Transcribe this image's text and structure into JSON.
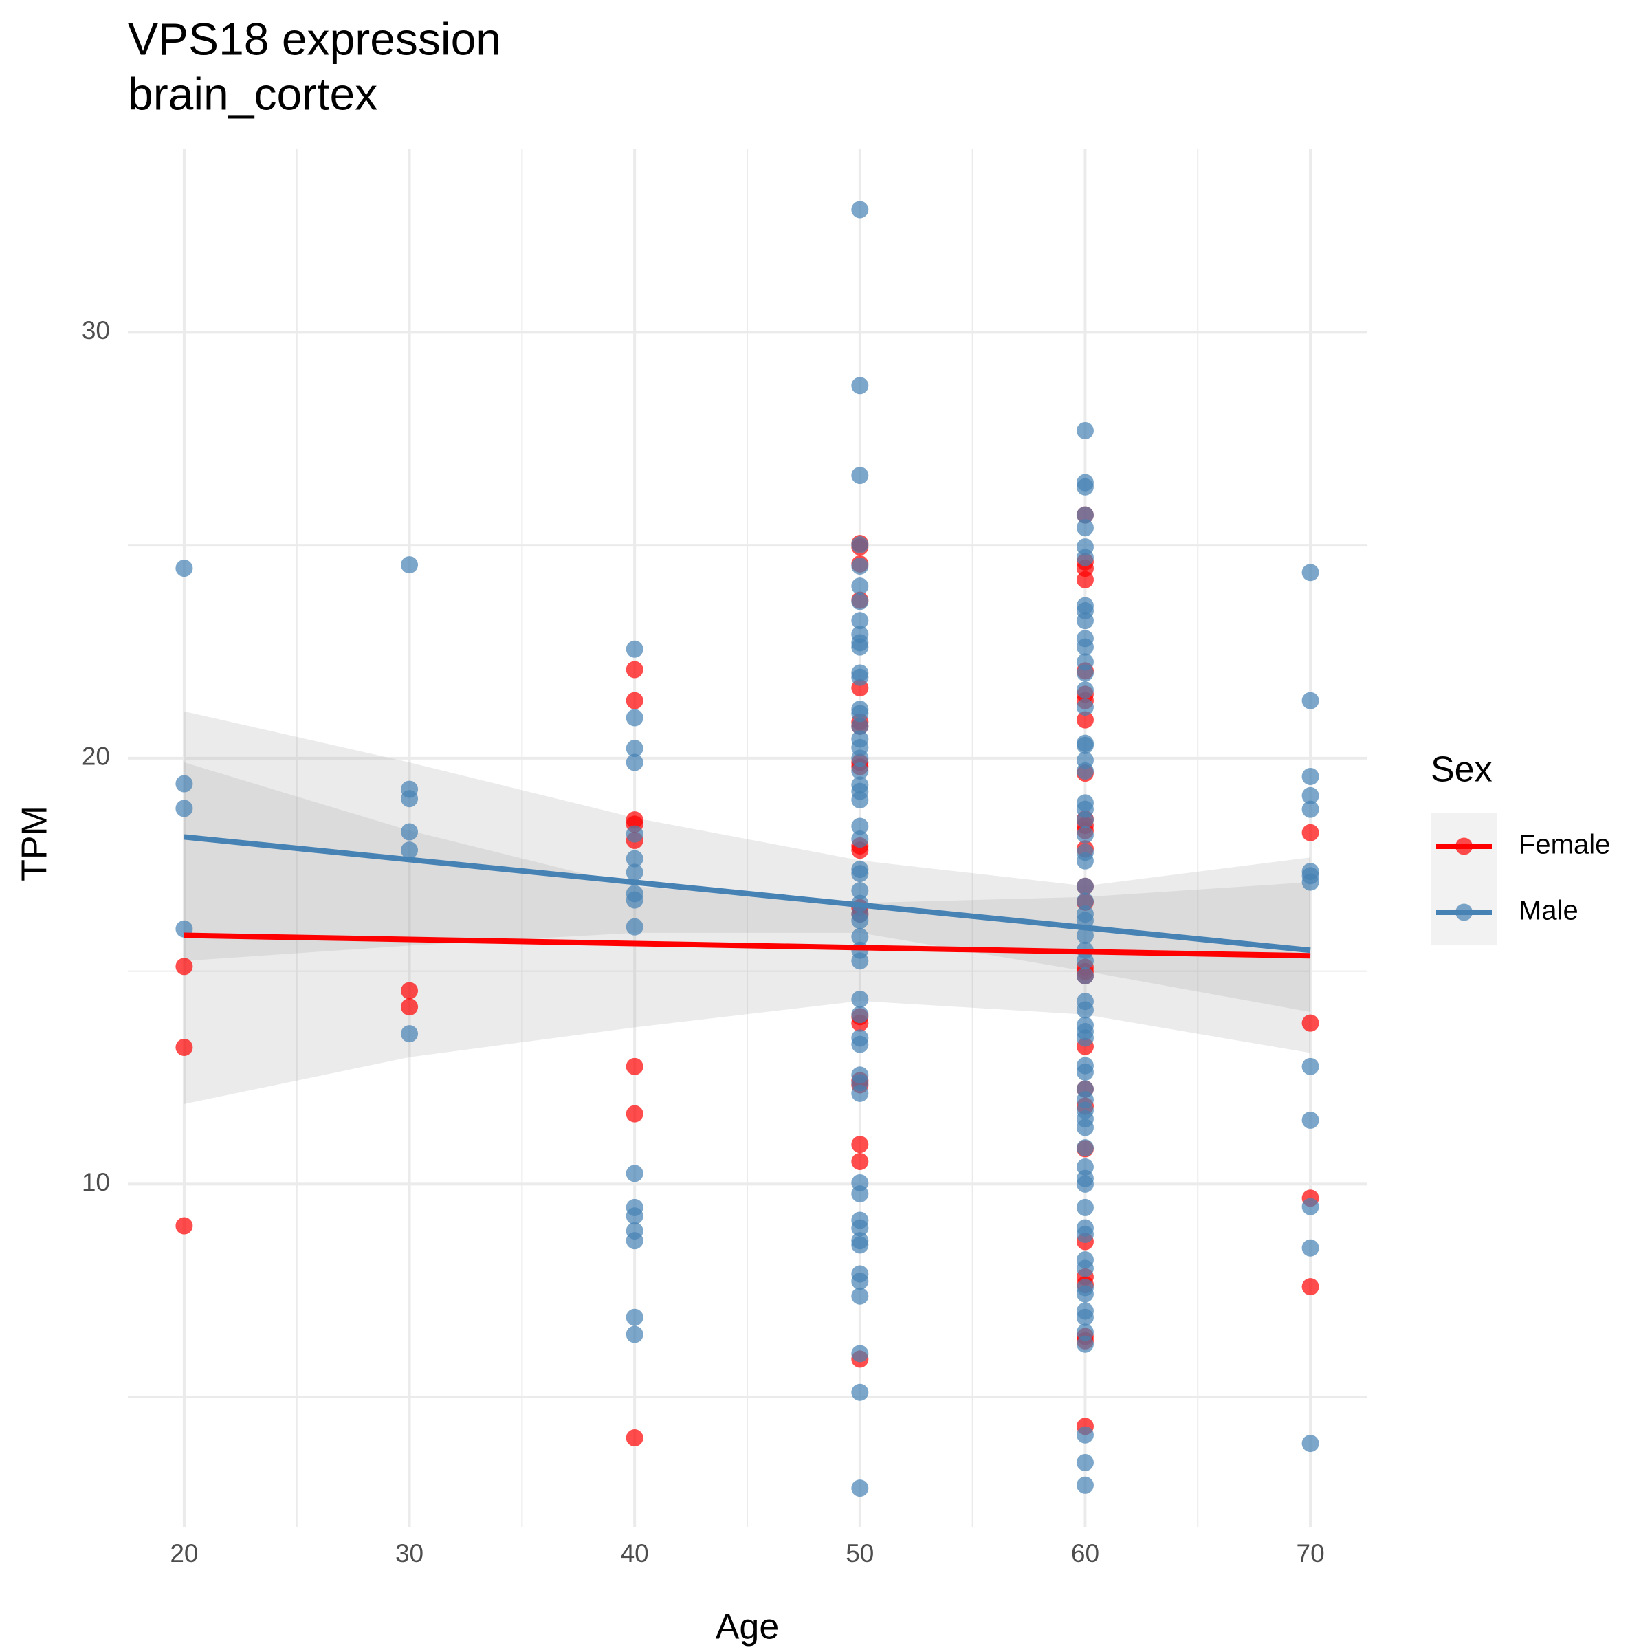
{
  "chart_data": {
    "type": "scatter",
    "title": "VPS18 expression",
    "subtitle": "brain_cortex",
    "x_label": "Age",
    "y_label": "TPM",
    "legend_title": "Sex",
    "legend_position": "right",
    "grid": true,
    "xlim": [
      17.5,
      72.5
    ],
    "ylim": [
      1.95,
      34.3
    ],
    "xticks": [
      20,
      30,
      40,
      50,
      60,
      70
    ],
    "yticks": [
      10,
      20,
      30
    ],
    "x_minor_grid": [
      25,
      35,
      45,
      55,
      65
    ],
    "y_minor_grid": [
      5,
      15,
      25
    ],
    "series": [
      {
        "name": "Female",
        "color": "#ff0000",
        "x": [
          20,
          20,
          20,
          30,
          30,
          40,
          40,
          40,
          40,
          40,
          40,
          40,
          40,
          50,
          50,
          50,
          50,
          50,
          50,
          50,
          50,
          50,
          50,
          50,
          50,
          50,
          50,
          50,
          50,
          50,
          50,
          50,
          50,
          60,
          60,
          60,
          60,
          60,
          60,
          60,
          60,
          60,
          60,
          60,
          60,
          60,
          60,
          60,
          60,
          60,
          60,
          60,
          60,
          60,
          60,
          60,
          60,
          60,
          60,
          60,
          60,
          70,
          70,
          70,
          70
        ],
        "values": [
          15.11,
          13.21,
          9.02,
          14.54,
          14.16,
          22.08,
          21.35,
          18.55,
          18.45,
          18.07,
          12.76,
          11.65,
          4.04,
          25.04,
          24.96,
          24.56,
          23.71,
          21.65,
          20.85,
          20.75,
          19.9,
          19.8,
          17.94,
          17.84,
          16.49,
          16.34,
          13.93,
          13.78,
          12.43,
          12.33,
          10.93,
          10.53,
          5.89,
          25.71,
          24.61,
          24.46,
          24.19,
          22.05,
          21.5,
          21.35,
          20.9,
          19.65,
          18.57,
          18.42,
          18.3,
          17.87,
          16.99,
          16.62,
          15.09,
          14.99,
          14.89,
          13.23,
          12.23,
          11.83,
          10.83,
          8.65,
          7.82,
          7.64,
          6.42,
          6.32,
          4.31,
          18.25,
          13.78,
          9.67,
          7.59
        ],
        "trend_x": [
          20,
          70
        ],
        "trend_values": [
          15.84,
          15.36
        ],
        "ci_x": [
          20,
          30,
          40,
          50,
          60,
          70
        ],
        "ci_lower": [
          11.88,
          12.98,
          13.68,
          14.3,
          13.98,
          13.08
        ],
        "ci_upper": [
          19.9,
          18.3,
          16.99,
          16.6,
          16.74,
          17.09
        ]
      },
      {
        "name": "Male",
        "color": "#4682b4",
        "x": [
          20,
          20,
          20,
          20,
          30,
          30,
          30,
          30,
          30,
          30,
          40,
          40,
          40,
          40,
          40,
          40,
          40,
          40,
          40,
          40,
          40,
          40,
          40,
          40,
          40,
          40,
          40,
          50,
          50,
          50,
          50,
          50,
          50,
          50,
          50,
          50,
          50,
          50,
          50,
          50,
          50,
          50,
          50,
          50,
          50,
          50,
          50,
          50,
          50,
          50,
          50,
          50,
          50,
          50,
          50,
          50,
          50,
          50,
          50,
          50,
          50,
          50,
          50,
          50,
          50,
          50,
          50,
          50,
          50,
          50,
          50,
          50,
          50,
          50,
          50,
          50,
          50,
          50,
          50,
          50,
          60,
          60,
          60,
          60,
          60,
          60,
          60,
          60,
          60,
          60,
          60,
          60,
          60,
          60,
          60,
          60,
          60,
          60,
          60,
          60,
          60,
          60,
          60,
          60,
          60,
          60,
          60,
          60,
          60,
          60,
          60,
          60,
          60,
          60,
          60,
          60,
          60,
          60,
          60,
          60,
          60,
          60,
          60,
          60,
          60,
          60,
          60,
          60,
          60,
          60,
          60,
          60,
          60,
          60,
          60,
          60,
          60,
          60,
          60,
          60,
          60,
          60,
          60,
          60,
          70,
          70,
          70,
          70,
          70,
          70,
          70,
          70,
          70,
          70,
          70,
          70,
          70
        ],
        "values": [
          24.46,
          19.4,
          18.82,
          15.99,
          24.54,
          19.27,
          19.05,
          18.27,
          17.84,
          13.53,
          22.56,
          20.95,
          20.23,
          19.9,
          18.22,
          17.64,
          17.32,
          16.82,
          16.67,
          16.04,
          10.25,
          9.45,
          9.25,
          8.9,
          8.67,
          6.87,
          6.47,
          32.88,
          28.75,
          26.64,
          25.01,
          24.51,
          24.04,
          23.68,
          23.23,
          22.91,
          22.71,
          22.61,
          22.0,
          21.9,
          21.15,
          21.05,
          20.75,
          20.45,
          20.25,
          20.0,
          19.7,
          19.37,
          19.22,
          19.02,
          18.4,
          18.1,
          17.39,
          17.29,
          16.89,
          16.59,
          16.34,
          16.19,
          15.81,
          15.49,
          15.24,
          14.34,
          13.98,
          13.43,
          13.28,
          12.56,
          12.38,
          12.13,
          10.03,
          9.77,
          9.15,
          8.97,
          8.67,
          8.57,
          7.89,
          7.72,
          7.37,
          6.02,
          5.11,
          2.86,
          27.69,
          26.47,
          26.37,
          25.71,
          25.41,
          24.96,
          24.71,
          23.58,
          23.46,
          23.23,
          22.81,
          22.61,
          22.26,
          22.0,
          21.6,
          21.2,
          20.35,
          20.3,
          19.95,
          19.7,
          18.95,
          18.8,
          18.55,
          18.2,
          17.79,
          17.59,
          16.99,
          16.64,
          16.34,
          16.19,
          15.84,
          15.49,
          15.24,
          14.89,
          14.29,
          14.09,
          13.73,
          13.58,
          13.43,
          12.78,
          12.63,
          12.23,
          11.98,
          11.73,
          11.53,
          11.33,
          10.85,
          10.4,
          10.13,
          10.0,
          9.45,
          8.97,
          8.82,
          8.22,
          8.02,
          7.57,
          7.42,
          7.02,
          6.87,
          6.52,
          6.24,
          4.11,
          3.46,
          2.93,
          24.36,
          21.35,
          19.57,
          19.12,
          18.8,
          17.34,
          17.24,
          17.09,
          12.76,
          11.5,
          9.47,
          8.5,
          3.91
        ],
        "trend_x": [
          20,
          70
        ],
        "trend_values": [
          18.15,
          15.49
        ],
        "ci_x": [
          20,
          30,
          40,
          50,
          60,
          70
        ],
        "ci_lower": [
          15.24,
          15.6,
          15.9,
          15.9,
          15.0,
          14.04
        ],
        "ci_upper": [
          21.1,
          19.9,
          18.6,
          17.6,
          17.0,
          17.67
        ]
      }
    ]
  }
}
